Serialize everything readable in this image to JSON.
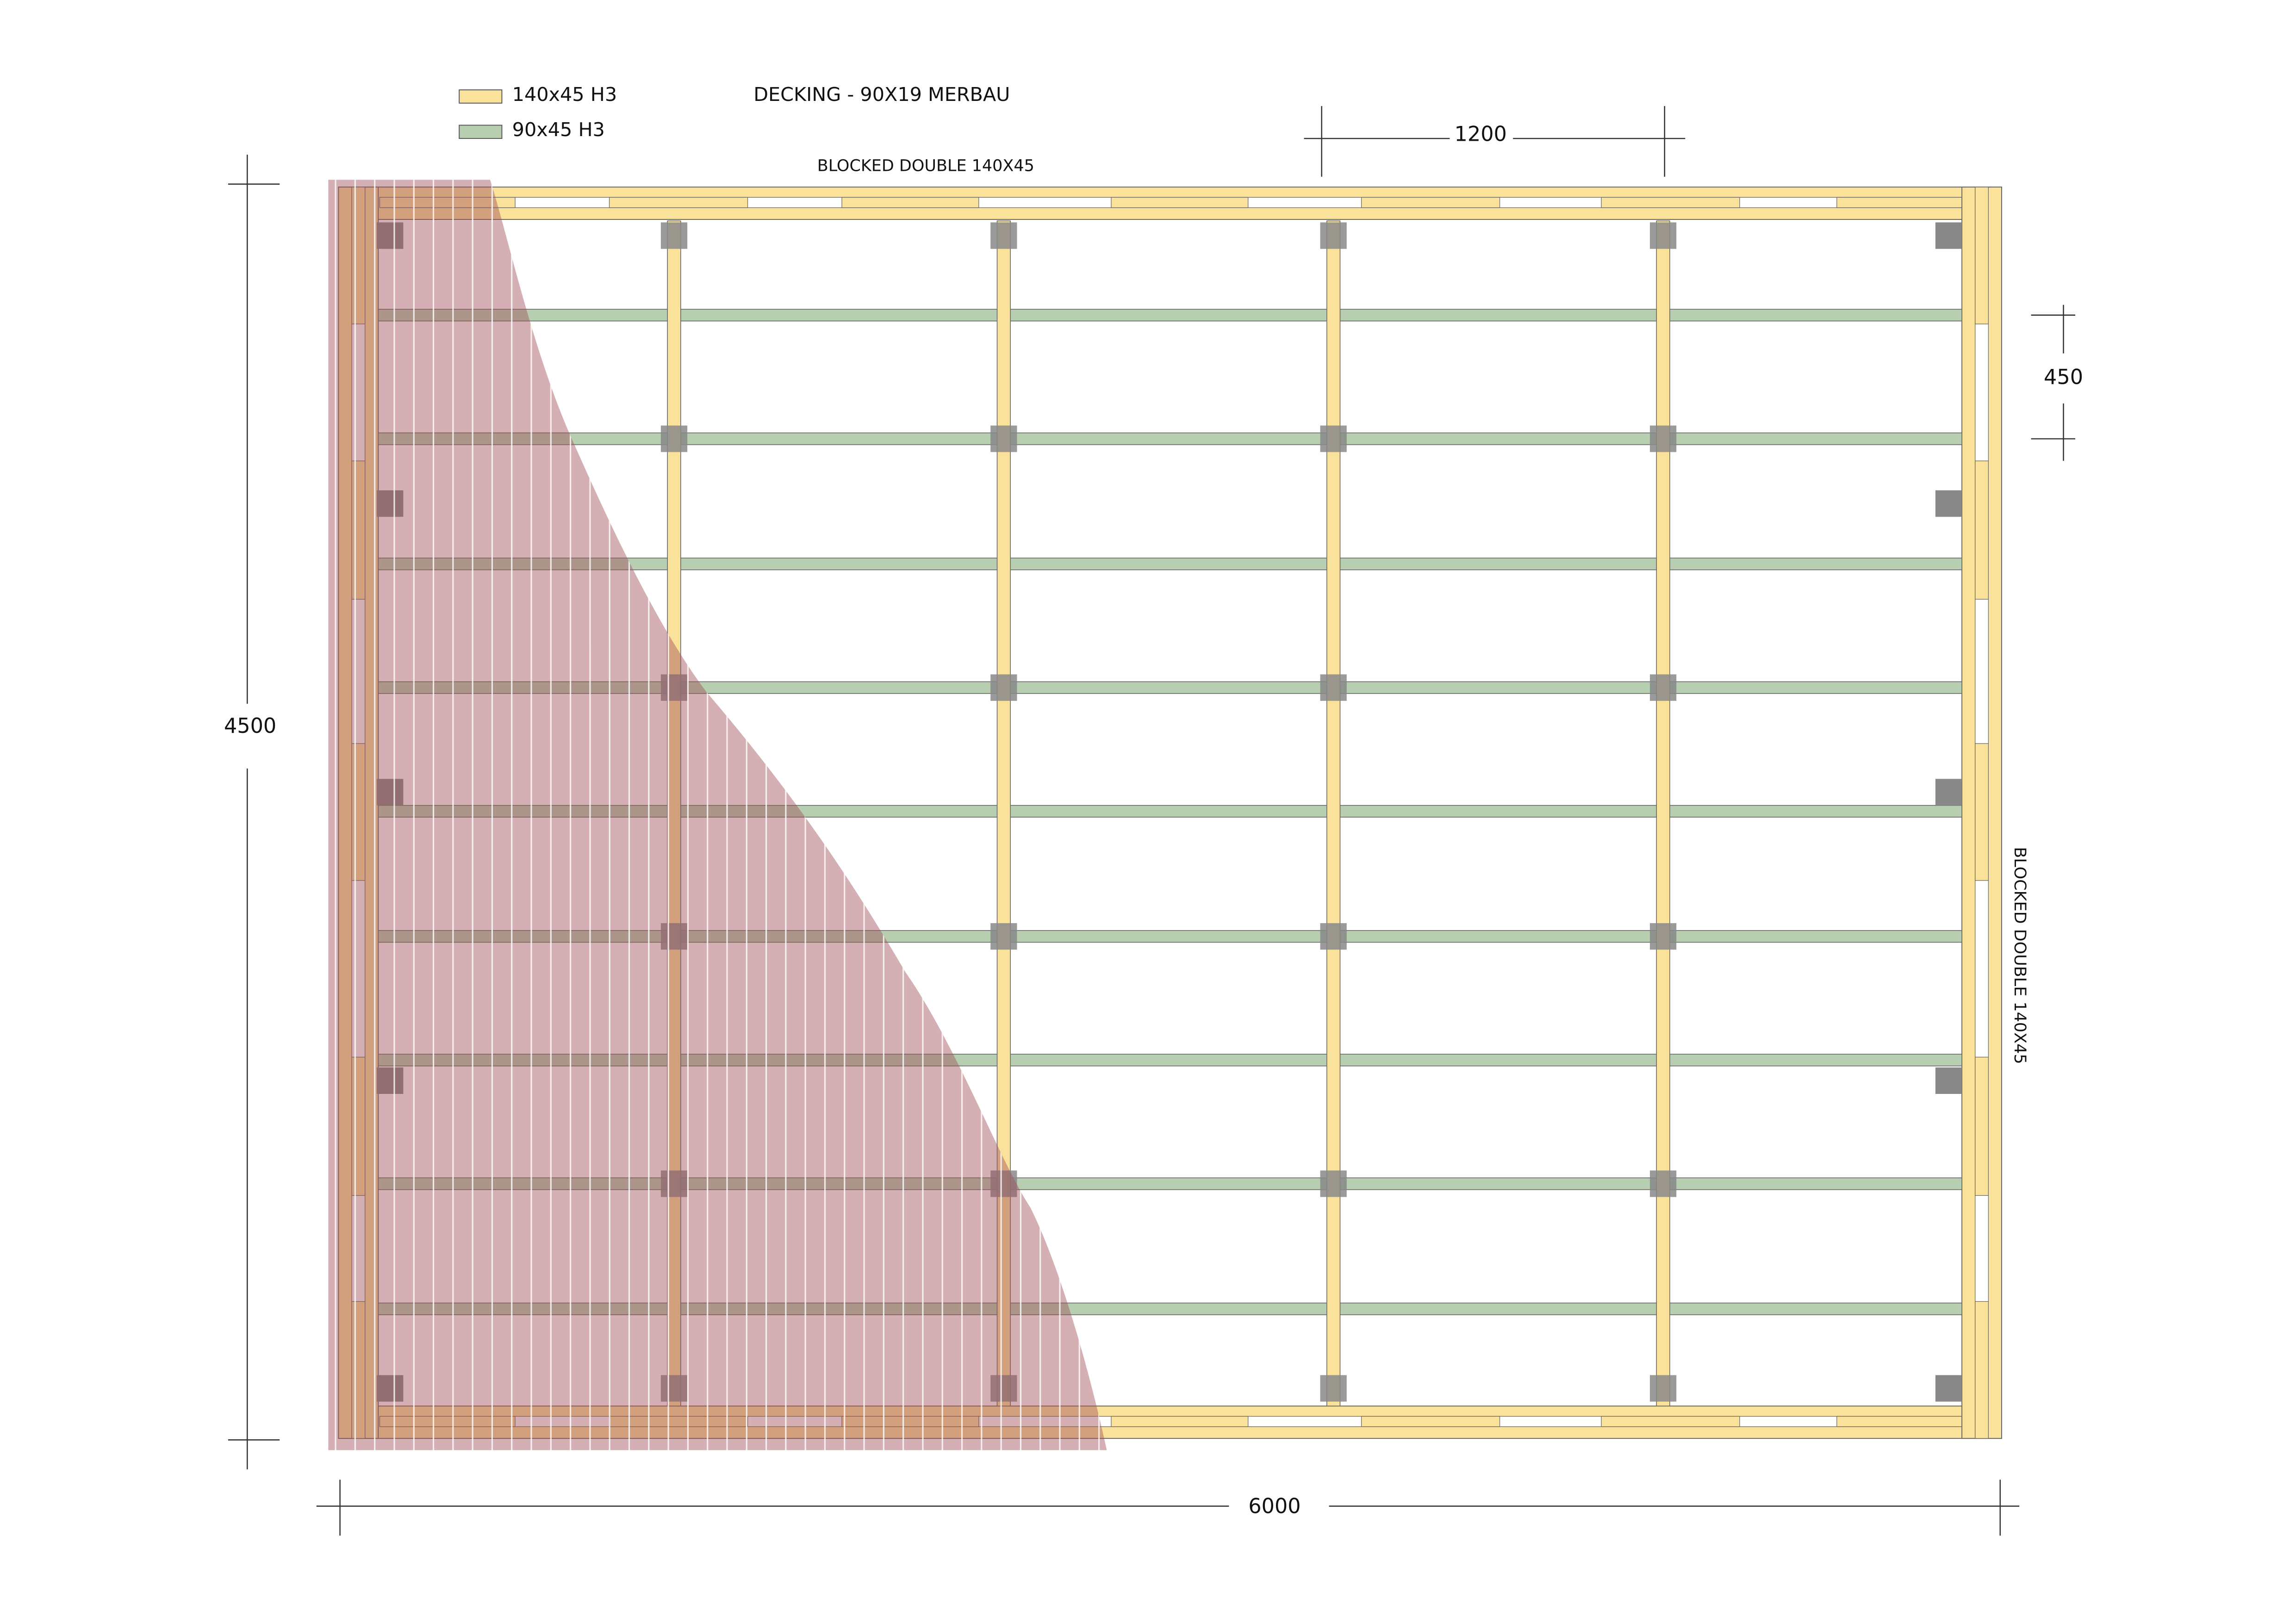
{
  "legend": [
    {
      "label": "140x45 H3"
    },
    {
      "label": "90x45 H3"
    }
  ],
  "title": "DECKING - 90X19 MERBAU",
  "annotations": {
    "top": "BLOCKED DOUBLE 140X45",
    "right": "BLOCKED DOUBLE 140X45"
  },
  "dimensions": {
    "bearer_spacing": "1200",
    "joist_spacing": "450",
    "depth": "4500",
    "width": "6000"
  }
}
